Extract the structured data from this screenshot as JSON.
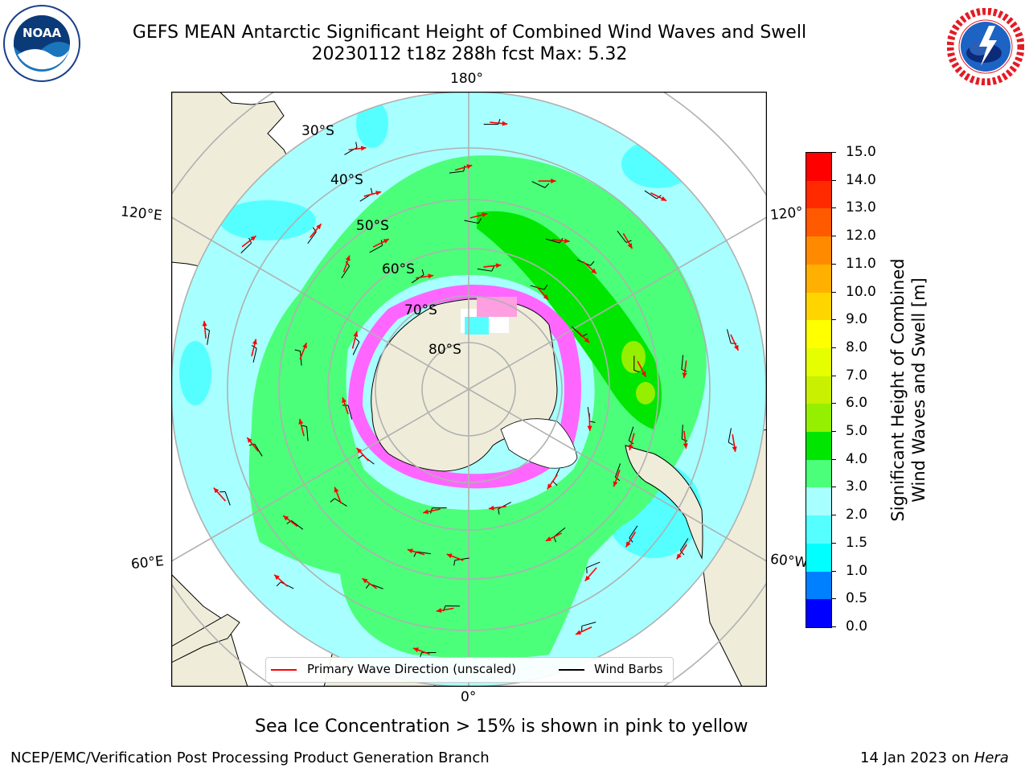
{
  "header": {
    "title_line1": "GEFS MEAN Antarctic Significant Height of Combined Wind Waves and Swell",
    "title_line2": "20230112 t18z 288h fcst   Max: 5.32"
  },
  "logos": {
    "noaa_text": "NOAA",
    "noaa_ring_text": "NATIONAL OCEANIC AND ATMOSPHERIC ADMINISTRATION · U.S. DEPARTMENT OF COMMERCE",
    "nws_ring_text": "NATIONAL WEATHER SERVICE"
  },
  "map": {
    "longitude_labels": {
      "top": "180°",
      "bottom": "0°",
      "upper_left": "120°E",
      "upper_right": "120°",
      "lower_left": "60°E",
      "lower_right": "60°W"
    },
    "latitude_labels": [
      "30°S",
      "40°S",
      "50°S",
      "60°S",
      "70°S",
      "80°S"
    ],
    "projection": "south polar stereographic",
    "gridlines": true
  },
  "legend": {
    "wave_direction_label": "Primary Wave Direction (unscaled)",
    "wind_barbs_label": "Wind Barbs",
    "wave_direction_color": "#ff0000",
    "wind_barbs_color": "#000000"
  },
  "colorbar": {
    "label_line1": "Significant Height of Combined",
    "label_line2": "Wind Waves and Swell [m]",
    "ticks": [
      "15.0",
      "14.0",
      "13.0",
      "12.0",
      "11.0",
      "10.0",
      "9.0",
      "8.0",
      "7.0",
      "6.0",
      "5.0",
      "4.0",
      "3.0",
      "2.0",
      "1.5",
      "1.0",
      "0.5",
      "0.0"
    ],
    "colors_top_to_bottom": [
      "#ff0000",
      "#ff2a00",
      "#ff5a00",
      "#ff8a00",
      "#ffb000",
      "#ffd500",
      "#ffff00",
      "#e6ff00",
      "#c8f000",
      "#95ef00",
      "#00e600",
      "#4cff7a",
      "#a8ffff",
      "#55ffff",
      "#00ffff",
      "#0080ff",
      "#0000ff"
    ]
  },
  "caption": "Sea Ice Concentration > 15% is shown in pink to yellow",
  "footer": {
    "left": "NCEP/EMC/Verification Post Processing Product Generation Branch",
    "right_prefix": "14 Jan 2023 on ",
    "right_machine": "Hera"
  },
  "colors": {
    "land": "#efedda",
    "ocean_low": "#a8ffff",
    "ocean_mid": "#55ffff",
    "wave_band": "#4cff7a",
    "wave_high": "#00e600",
    "arrow": "#ff0000"
  }
}
